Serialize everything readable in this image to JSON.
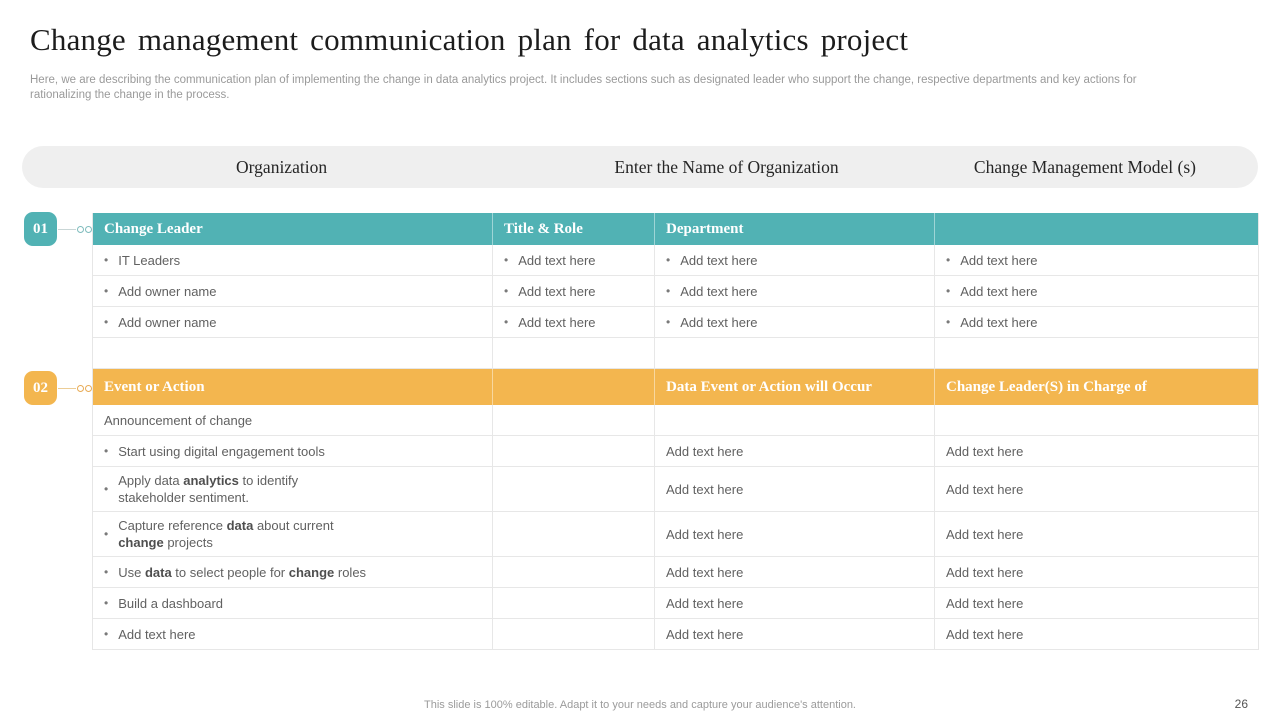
{
  "slide": {
    "title": "Change management communication plan for data analytics project",
    "subtitle_lines": [
      "Here, we are describing the communication plan of implementing the change in data analytics project. It includes sections such as designated leader who support the change, respective departments and key actions for",
      "rationalizing the change in the process."
    ],
    "footer_note": "This slide is 100% editable. Adapt it to your needs and capture your audience's attention.",
    "page_number": "26"
  },
  "colors": {
    "teal": "#51b2b4",
    "orange": "#f3b64f"
  },
  "org_bar": {
    "labels": [
      "Organization",
      "Enter the Name of Organization",
      "Change Management Model (s)"
    ]
  },
  "sections": [
    {
      "badge": "01",
      "theme": "teal",
      "headers": [
        "Change Leader",
        "Title & Role",
        "Department",
        ""
      ],
      "rows": [
        {
          "cells": [
            {
              "bullet": true,
              "parts": [
                "IT Leaders"
              ]
            },
            {
              "bullet": true,
              "editable": true,
              "parts": [
                "Add text here"
              ]
            },
            {
              "bullet": true,
              "editable": true,
              "parts": [
                "Add text here"
              ]
            },
            {
              "bullet": true,
              "editable": true,
              "parts": [
                "Add text here"
              ]
            }
          ]
        },
        {
          "cells": [
            {
              "bullet": true,
              "editable": true,
              "parts": [
                "Add owner name"
              ]
            },
            {
              "bullet": true,
              "editable": true,
              "parts": [
                "Add text here"
              ]
            },
            {
              "bullet": true,
              "editable": true,
              "parts": [
                "Add text here"
              ]
            },
            {
              "bullet": true,
              "editable": true,
              "parts": [
                "Add text here"
              ]
            }
          ]
        },
        {
          "cells": [
            {
              "bullet": true,
              "editable": true,
              "parts": [
                "Add owner name"
              ]
            },
            {
              "bullet": true,
              "editable": true,
              "parts": [
                "Add text here"
              ]
            },
            {
              "bullet": true,
              "editable": true,
              "parts": [
                "Add text here"
              ]
            },
            {
              "bullet": true,
              "editable": true,
              "parts": [
                "Add text here"
              ]
            }
          ]
        },
        {
          "cells": [
            {
              "parts": []
            },
            {
              "parts": []
            },
            {
              "parts": []
            },
            {
              "parts": []
            }
          ]
        }
      ]
    },
    {
      "badge": "02",
      "theme": "orange",
      "headers": [
        "Event or Action",
        "",
        "Data Event or Action will Occur",
        "Change Leader(S) in Charge of"
      ],
      "rows": [
        {
          "cells": [
            {
              "parts": [
                "Announcement of change"
              ]
            },
            {
              "parts": []
            },
            {
              "parts": []
            },
            {
              "parts": []
            }
          ]
        },
        {
          "cells": [
            {
              "bullet": true,
              "parts": [
                "Start using digital engagement tools"
              ]
            },
            {
              "parts": []
            },
            {
              "editable": true,
              "parts": [
                "Add text here"
              ]
            },
            {
              "editable": true,
              "parts": [
                "Add text here"
              ]
            }
          ]
        },
        {
          "cells": [
            {
              "bullet": true,
              "parts": [
                "Apply data ",
                {
                  "bold": "analytics"
                },
                " to identify\nstakeholder sentiment."
              ]
            },
            {
              "parts": []
            },
            {
              "editable": true,
              "parts": [
                "Add text here"
              ]
            },
            {
              "editable": true,
              "parts": [
                "Add text here"
              ]
            }
          ]
        },
        {
          "cells": [
            {
              "bullet": true,
              "parts": [
                "Capture reference ",
                {
                  "bold": "data"
                },
                " about current\n",
                {
                  "bold": "change"
                },
                " projects"
              ]
            },
            {
              "parts": []
            },
            {
              "editable": true,
              "parts": [
                "Add text here"
              ]
            },
            {
              "editable": true,
              "parts": [
                "Add text here"
              ]
            }
          ]
        },
        {
          "cells": [
            {
              "bullet": true,
              "parts": [
                "Use ",
                {
                  "bold": "data"
                },
                " to select people for ",
                {
                  "bold": "change"
                },
                " roles"
              ]
            },
            {
              "parts": []
            },
            {
              "editable": true,
              "parts": [
                "Add text here"
              ]
            },
            {
              "editable": true,
              "parts": [
                "Add text here"
              ]
            }
          ]
        },
        {
          "cells": [
            {
              "bullet": true,
              "parts": [
                "Build a dashboard"
              ]
            },
            {
              "parts": []
            },
            {
              "editable": true,
              "parts": [
                "Add text here"
              ]
            },
            {
              "editable": true,
              "parts": [
                "Add text here"
              ]
            }
          ]
        },
        {
          "cells": [
            {
              "bullet": true,
              "editable": true,
              "parts": [
                "Add text here"
              ]
            },
            {
              "parts": []
            },
            {
              "editable": true,
              "parts": [
                "Add text here"
              ]
            },
            {
              "editable": true,
              "parts": [
                "Add text here"
              ]
            }
          ]
        }
      ]
    }
  ]
}
